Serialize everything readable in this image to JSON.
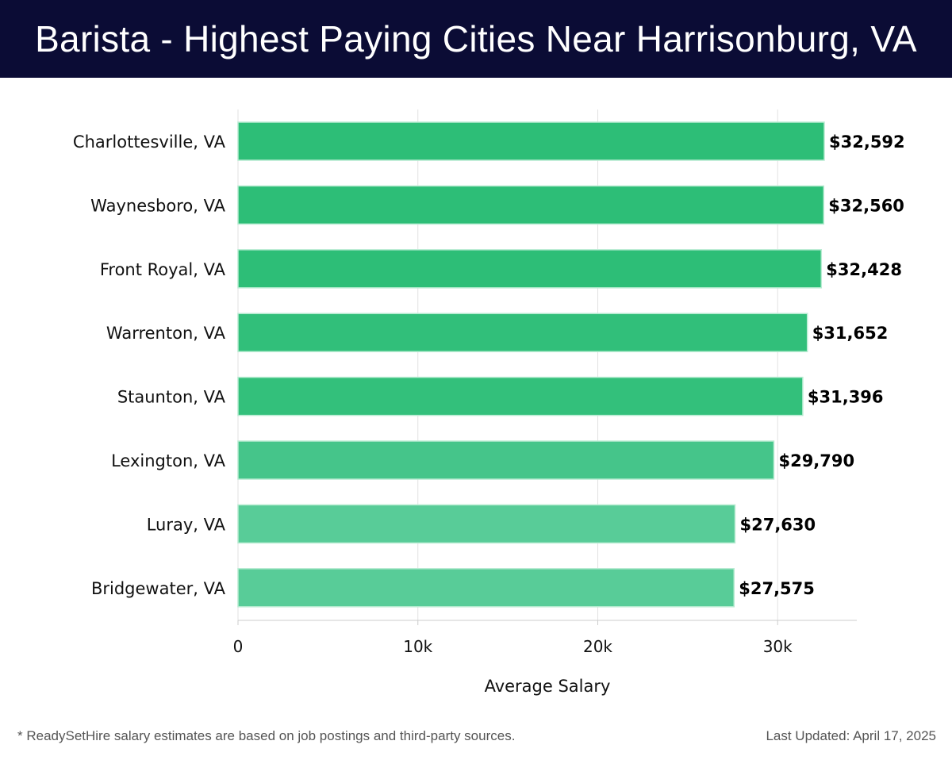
{
  "header": {
    "title": "Barista - Highest Paying Cities Near Harrisonburg, VA"
  },
  "chart_data": {
    "type": "bar",
    "orientation": "horizontal",
    "title": "Barista - Highest Paying Cities Near Harrisonburg, VA",
    "categories": [
      "Charlottesville, VA",
      "Waynesboro, VA",
      "Front Royal, VA",
      "Warrenton, VA",
      "Staunton, VA",
      "Lexington, VA",
      "Luray, VA",
      "Bridgewater, VA"
    ],
    "values": [
      32592,
      32560,
      32428,
      31652,
      31396,
      29790,
      27630,
      27575
    ],
    "value_labels": [
      "$32,592",
      "$32,560",
      "$32,428",
      "$31,652",
      "$31,396",
      "$29,790",
      "$27,630",
      "$27,575"
    ],
    "bar_colors": [
      "#2dbe77",
      "#2dbe77",
      "#2dbe77",
      "#31bf7a",
      "#33c07b",
      "#45c58a",
      "#58cc98",
      "#58cc98"
    ],
    "xlabel": "Average Salary",
    "ylabel": "",
    "xlim": [
      0,
      34400
    ],
    "xticks": [
      0,
      10000,
      20000,
      30000
    ],
    "xtick_labels": [
      "0",
      "10k",
      "20k",
      "30k"
    ],
    "grid": true
  },
  "footer": {
    "note": "* ReadySetHire salary estimates are based on job postings and third-party sources.",
    "updated": "Last Updated: April 17, 2025"
  }
}
